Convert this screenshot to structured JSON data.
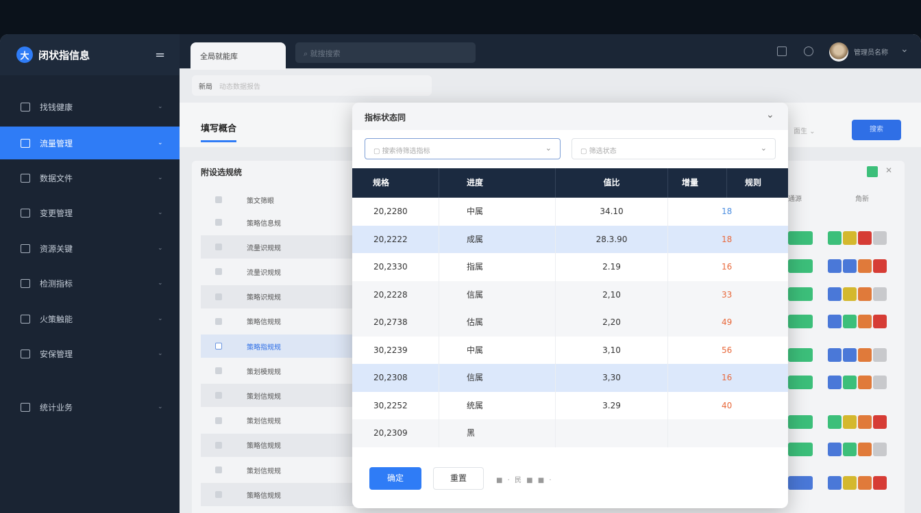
{
  "app": {
    "title": "闭状指信息",
    "tab": "全局就能库",
    "search_placeholder": "就搜搜索",
    "user": "管理员名称"
  },
  "sidebar": {
    "items": [
      {
        "label": "找钱健康",
        "icon": "dashboard-icon"
      },
      {
        "label": "流量管理",
        "icon": "home-icon",
        "active": true
      },
      {
        "label": "数据文件",
        "icon": "folder-icon"
      },
      {
        "label": "变更管理",
        "icon": "monitor-icon"
      },
      {
        "label": "资源关键",
        "icon": "resource-icon"
      },
      {
        "label": "检测指标",
        "icon": "grid-icon"
      },
      {
        "label": "火策触能",
        "icon": "tool-icon"
      },
      {
        "label": "安保管理",
        "icon": "shield-icon"
      },
      {
        "label": "统计业务",
        "icon": "chart-icon"
      }
    ]
  },
  "breadcrumb": {
    "current": "新局",
    "rest": "动态数据报告"
  },
  "panel": {
    "title": "填写概合",
    "right_select": "面生",
    "right_button": "搜索",
    "list_title": "附设选规统",
    "list_header": "策文筛眼",
    "list_rows": [
      "策略信息规",
      "流量识规规",
      "流量识规规",
      "策略识规规",
      "策略信规规",
      "策略指规规",
      "策划模规规",
      "策划信规规",
      "策划信规规",
      "策略信规规",
      "策划信规规",
      "策略信规规"
    ],
    "list_selected_index": 5,
    "right_header": [
      "通源",
      "角新"
    ],
    "status_colors": {
      "green": "#3cbf7a",
      "yellow": "#d4b82e",
      "orange": "#e07a3a",
      "red": "#d63c35",
      "blue": "#4a78d8",
      "gray": "#c8c9cc"
    },
    "right_rows": [
      [
        "green",
        "yellow",
        "red",
        "gray"
      ],
      [
        "blue",
        "blue",
        "orange",
        "red"
      ],
      [
        "blue",
        "yellow",
        "orange",
        "gray"
      ],
      [
        "blue",
        "green",
        "orange",
        "red"
      ],
      [
        "blue",
        "blue",
        "orange",
        "gray"
      ],
      [
        "blue",
        "green",
        "orange",
        "gray"
      ],
      [
        "green",
        "yellow",
        "orange",
        "red"
      ],
      [
        "blue",
        "green",
        "orange",
        "gray"
      ],
      [
        "blue",
        "yellow",
        "orange",
        "red"
      ]
    ]
  },
  "modal": {
    "title": "指标状态同",
    "select1_placeholder": "搜索待筛选指标",
    "select2_placeholder": "筛选状态",
    "columns": [
      "规格",
      "进度",
      "值比",
      "增量",
      "规则"
    ],
    "rows": [
      {
        "id": "20,2280",
        "type": "中属",
        "value": "34.10",
        "count": "18",
        "count_color": "#4a8de0"
      },
      {
        "id": "20,2222",
        "type": "成属",
        "value": "28.3.90",
        "count": "18",
        "count_color": "#e8683a"
      },
      {
        "id": "20,2330",
        "type": "指属",
        "value": "2.19",
        "count": "16",
        "count_color": "#e8683a"
      },
      {
        "id": "20,2228",
        "type": "信属",
        "value": "2,10",
        "count": "33",
        "count_color": "#e8683a"
      },
      {
        "id": "20,2738",
        "type": "估属",
        "value": "2,20",
        "count": "49",
        "count_color": "#e8683a"
      },
      {
        "id": "30,2239",
        "type": "中属",
        "value": "3,10",
        "count": "56",
        "count_color": "#e8683a"
      },
      {
        "id": "20,2308",
        "type": "信属",
        "value": "3,30",
        "count": "16",
        "count_color": "#e8683a"
      },
      {
        "id": "30,2252",
        "type": "统属",
        "value": "3.29",
        "count": "40",
        "count_color": "#e8683a"
      },
      {
        "id": "20,2309",
        "type": "黑",
        "value": "",
        "count": "",
        "count_color": "#e8683a"
      }
    ],
    "highlight_rows": [
      1,
      6
    ],
    "confirm": "确定",
    "cancel": "重置",
    "pager": "■ · 民 ■ ■ ·"
  }
}
